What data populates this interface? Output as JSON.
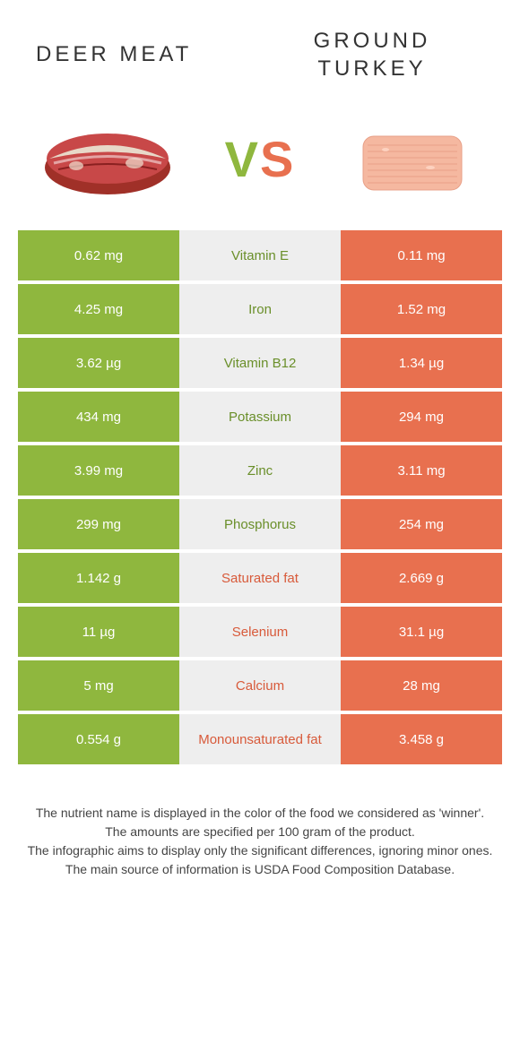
{
  "header": {
    "left_title": "DEER MEAT",
    "right_title": "GROUND TURKEY"
  },
  "vs": {
    "v": "V",
    "s": "S"
  },
  "colors": {
    "green": "#8fb73e",
    "orange": "#e8704f",
    "grey": "#eeeeee",
    "mid_green_text": "#6a8f2a",
    "mid_orange_text": "#d85a3a"
  },
  "table": {
    "rows": [
      {
        "left": "0.62 mg",
        "label": "Vitamin E",
        "right": "0.11 mg",
        "winner": "left"
      },
      {
        "left": "4.25 mg",
        "label": "Iron",
        "right": "1.52 mg",
        "winner": "left"
      },
      {
        "left": "3.62 µg",
        "label": "Vitamin B12",
        "right": "1.34 µg",
        "winner": "left"
      },
      {
        "left": "434 mg",
        "label": "Potassium",
        "right": "294 mg",
        "winner": "left"
      },
      {
        "left": "3.99 mg",
        "label": "Zinc",
        "right": "3.11 mg",
        "winner": "left"
      },
      {
        "left": "299 mg",
        "label": "Phosphorus",
        "right": "254 mg",
        "winner": "left"
      },
      {
        "left": "1.142 g",
        "label": "Saturated fat",
        "right": "2.669 g",
        "winner": "right"
      },
      {
        "left": "11 µg",
        "label": "Selenium",
        "right": "31.1 µg",
        "winner": "right"
      },
      {
        "left": "5 mg",
        "label": "Calcium",
        "right": "28 mg",
        "winner": "right"
      },
      {
        "left": "0.554 g",
        "label": "Monounsaturated fat",
        "right": "3.458 g",
        "winner": "right"
      }
    ]
  },
  "footer": {
    "line1": "The nutrient name is displayed in the color of the food we considered as 'winner'.",
    "line2": "The amounts are specified per 100 gram of the product.",
    "line3": "The infographic aims to display only the significant differences, ignoring minor ones.",
    "line4": "The main source of information is USDA Food Composition Database."
  }
}
